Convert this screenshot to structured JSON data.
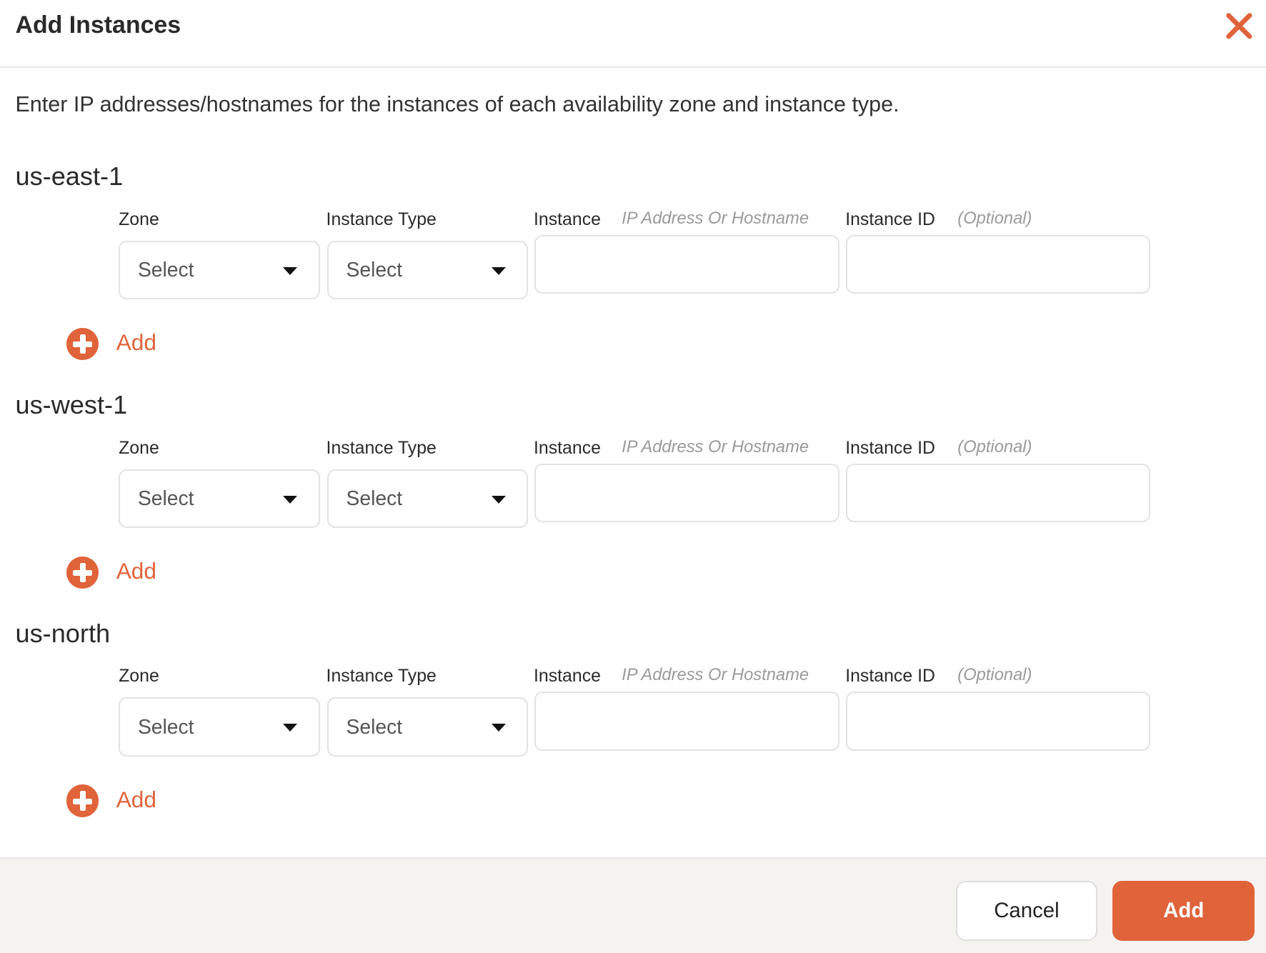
{
  "dialog": {
    "title": "Add Instances",
    "description": "Enter IP addresses/hostnames for the instances of each availability zone and instance type.",
    "accent_color": "#e0633a"
  },
  "sections": [
    {
      "region": "us-east-1"
    },
    {
      "region": "us-west-1"
    },
    {
      "region": "us-north"
    }
  ],
  "fields": {
    "zone_label": "Zone",
    "instance_type_label": "Instance Type",
    "instance_label": "Instance",
    "instance_hint": "IP Address Or Hostname",
    "instance_id_label": "Instance ID",
    "instance_id_hint": "(Optional)",
    "zone_value": "Select",
    "instance_type_value": "Select",
    "instance_value": "",
    "instance_id_value": "",
    "add_label": "Add"
  },
  "footer": {
    "cancel_label": "Cancel",
    "add_label": "Add"
  }
}
